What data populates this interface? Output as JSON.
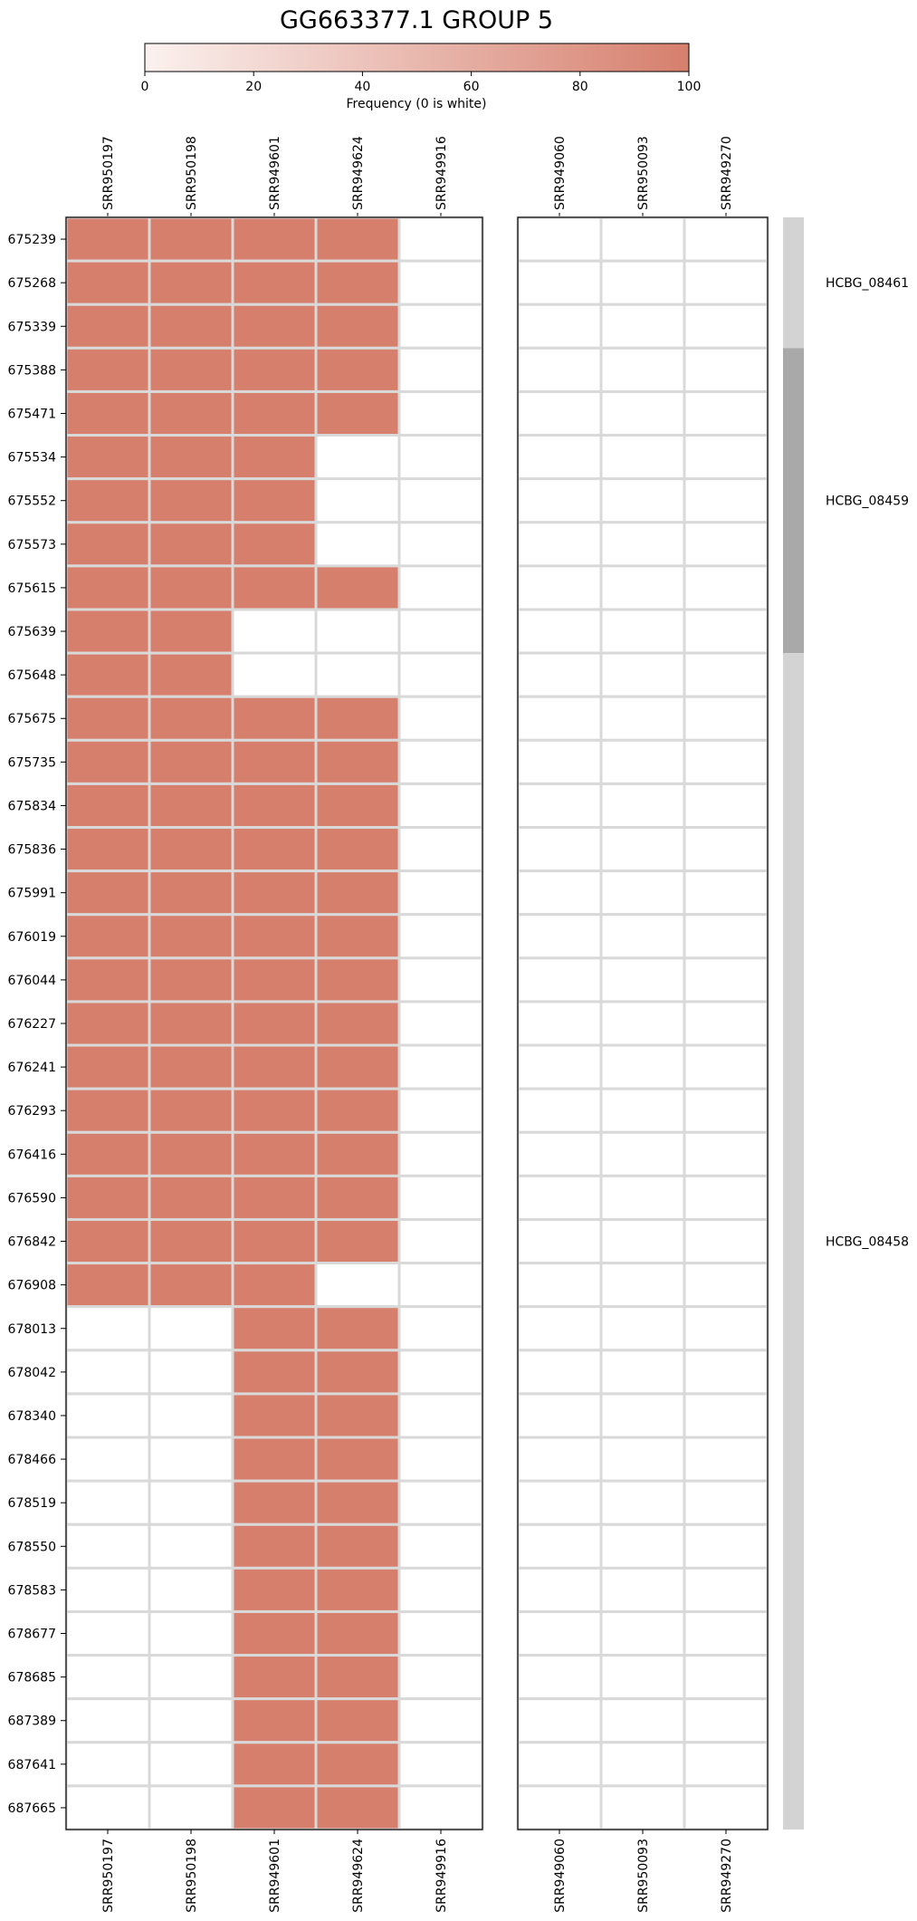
{
  "chart_data": {
    "type": "heatmap",
    "title": "GG663377.1 GROUP 5",
    "colorbar": {
      "label": "Frequency (0 is white)",
      "range": [
        0,
        100
      ],
      "ticks": [
        0,
        20,
        40,
        60,
        80,
        100
      ],
      "color_low": "#fbf1ef",
      "color_high": "#d67f6d"
    },
    "cell_color": "#d67f6d",
    "grid_color": "#d9d9d9",
    "panels": [
      {
        "columns": [
          "SRR950197",
          "SRR950198",
          "SRR949601",
          "SRR949624",
          "SRR949916"
        ]
      },
      {
        "columns": [
          "SRR949060",
          "SRR950093",
          "SRR949270"
        ]
      }
    ],
    "rows": [
      "675239",
      "675268",
      "675339",
      "675388",
      "675471",
      "675534",
      "675552",
      "675573",
      "675615",
      "675639",
      "675648",
      "675675",
      "675735",
      "675834",
      "675836",
      "675991",
      "676019",
      "676044",
      "676227",
      "676241",
      "676293",
      "676416",
      "676590",
      "676842",
      "676908",
      "678013",
      "678042",
      "678340",
      "678466",
      "678519",
      "678550",
      "678583",
      "678677",
      "678685",
      "687389",
      "687641",
      "687665"
    ],
    "values": [
      [
        [
          100,
          100,
          100,
          100,
          0
        ],
        [
          0,
          0,
          0
        ]
      ],
      [
        [
          100,
          100,
          100,
          100,
          0
        ],
        [
          0,
          0,
          0
        ]
      ],
      [
        [
          100,
          100,
          100,
          100,
          0
        ],
        [
          0,
          0,
          0
        ]
      ],
      [
        [
          100,
          100,
          100,
          100,
          0
        ],
        [
          0,
          0,
          0
        ]
      ],
      [
        [
          100,
          100,
          100,
          100,
          0
        ],
        [
          0,
          0,
          0
        ]
      ],
      [
        [
          100,
          100,
          100,
          0,
          0
        ],
        [
          0,
          0,
          0
        ]
      ],
      [
        [
          100,
          100,
          100,
          0,
          0
        ],
        [
          0,
          0,
          0
        ]
      ],
      [
        [
          100,
          100,
          100,
          0,
          0
        ],
        [
          0,
          0,
          0
        ]
      ],
      [
        [
          100,
          100,
          100,
          100,
          0
        ],
        [
          0,
          0,
          0
        ]
      ],
      [
        [
          100,
          100,
          0,
          0,
          0
        ],
        [
          0,
          0,
          0
        ]
      ],
      [
        [
          100,
          100,
          0,
          0,
          0
        ],
        [
          0,
          0,
          0
        ]
      ],
      [
        [
          100,
          100,
          100,
          100,
          0
        ],
        [
          0,
          0,
          0
        ]
      ],
      [
        [
          100,
          100,
          100,
          100,
          0
        ],
        [
          0,
          0,
          0
        ]
      ],
      [
        [
          100,
          100,
          100,
          100,
          0
        ],
        [
          0,
          0,
          0
        ]
      ],
      [
        [
          100,
          100,
          100,
          100,
          0
        ],
        [
          0,
          0,
          0
        ]
      ],
      [
        [
          100,
          100,
          100,
          100,
          0
        ],
        [
          0,
          0,
          0
        ]
      ],
      [
        [
          100,
          100,
          100,
          100,
          0
        ],
        [
          0,
          0,
          0
        ]
      ],
      [
        [
          100,
          100,
          100,
          100,
          0
        ],
        [
          0,
          0,
          0
        ]
      ],
      [
        [
          100,
          100,
          100,
          100,
          0
        ],
        [
          0,
          0,
          0
        ]
      ],
      [
        [
          100,
          100,
          100,
          100,
          0
        ],
        [
          0,
          0,
          0
        ]
      ],
      [
        [
          100,
          100,
          100,
          100,
          0
        ],
        [
          0,
          0,
          0
        ]
      ],
      [
        [
          100,
          100,
          100,
          100,
          0
        ],
        [
          0,
          0,
          0
        ]
      ],
      [
        [
          100,
          100,
          100,
          100,
          0
        ],
        [
          0,
          0,
          0
        ]
      ],
      [
        [
          100,
          100,
          100,
          100,
          0
        ],
        [
          0,
          0,
          0
        ]
      ],
      [
        [
          100,
          100,
          100,
          0,
          0
        ],
        [
          0,
          0,
          0
        ]
      ],
      [
        [
          0,
          0,
          100,
          100,
          0
        ],
        [
          0,
          0,
          0
        ]
      ],
      [
        [
          0,
          0,
          100,
          100,
          0
        ],
        [
          0,
          0,
          0
        ]
      ],
      [
        [
          0,
          0,
          100,
          100,
          0
        ],
        [
          0,
          0,
          0
        ]
      ],
      [
        [
          0,
          0,
          100,
          100,
          0
        ],
        [
          0,
          0,
          0
        ]
      ],
      [
        [
          0,
          0,
          100,
          100,
          0
        ],
        [
          0,
          0,
          0
        ]
      ],
      [
        [
          0,
          0,
          100,
          100,
          0
        ],
        [
          0,
          0,
          0
        ]
      ],
      [
        [
          0,
          0,
          100,
          100,
          0
        ],
        [
          0,
          0,
          0
        ]
      ],
      [
        [
          0,
          0,
          100,
          100,
          0
        ],
        [
          0,
          0,
          0
        ]
      ],
      [
        [
          0,
          0,
          100,
          100,
          0
        ],
        [
          0,
          0,
          0
        ]
      ],
      [
        [
          0,
          0,
          100,
          100,
          0
        ],
        [
          0,
          0,
          0
        ]
      ],
      [
        [
          0,
          0,
          100,
          100,
          0
        ],
        [
          0,
          0,
          0
        ]
      ],
      [
        [
          0,
          0,
          100,
          100,
          0
        ],
        [
          0,
          0,
          0
        ]
      ]
    ],
    "groups": [
      {
        "label": "HCBG_08461",
        "row_start": 0,
        "row_end": 2,
        "color": "#d3d3d3"
      },
      {
        "label": "HCBG_08459",
        "row_start": 3,
        "row_end": 9,
        "color": "#a9a9a9"
      },
      {
        "label": "HCBG_08458",
        "row_start": 10,
        "row_end": 36,
        "color": "#d3d3d3"
      }
    ]
  }
}
